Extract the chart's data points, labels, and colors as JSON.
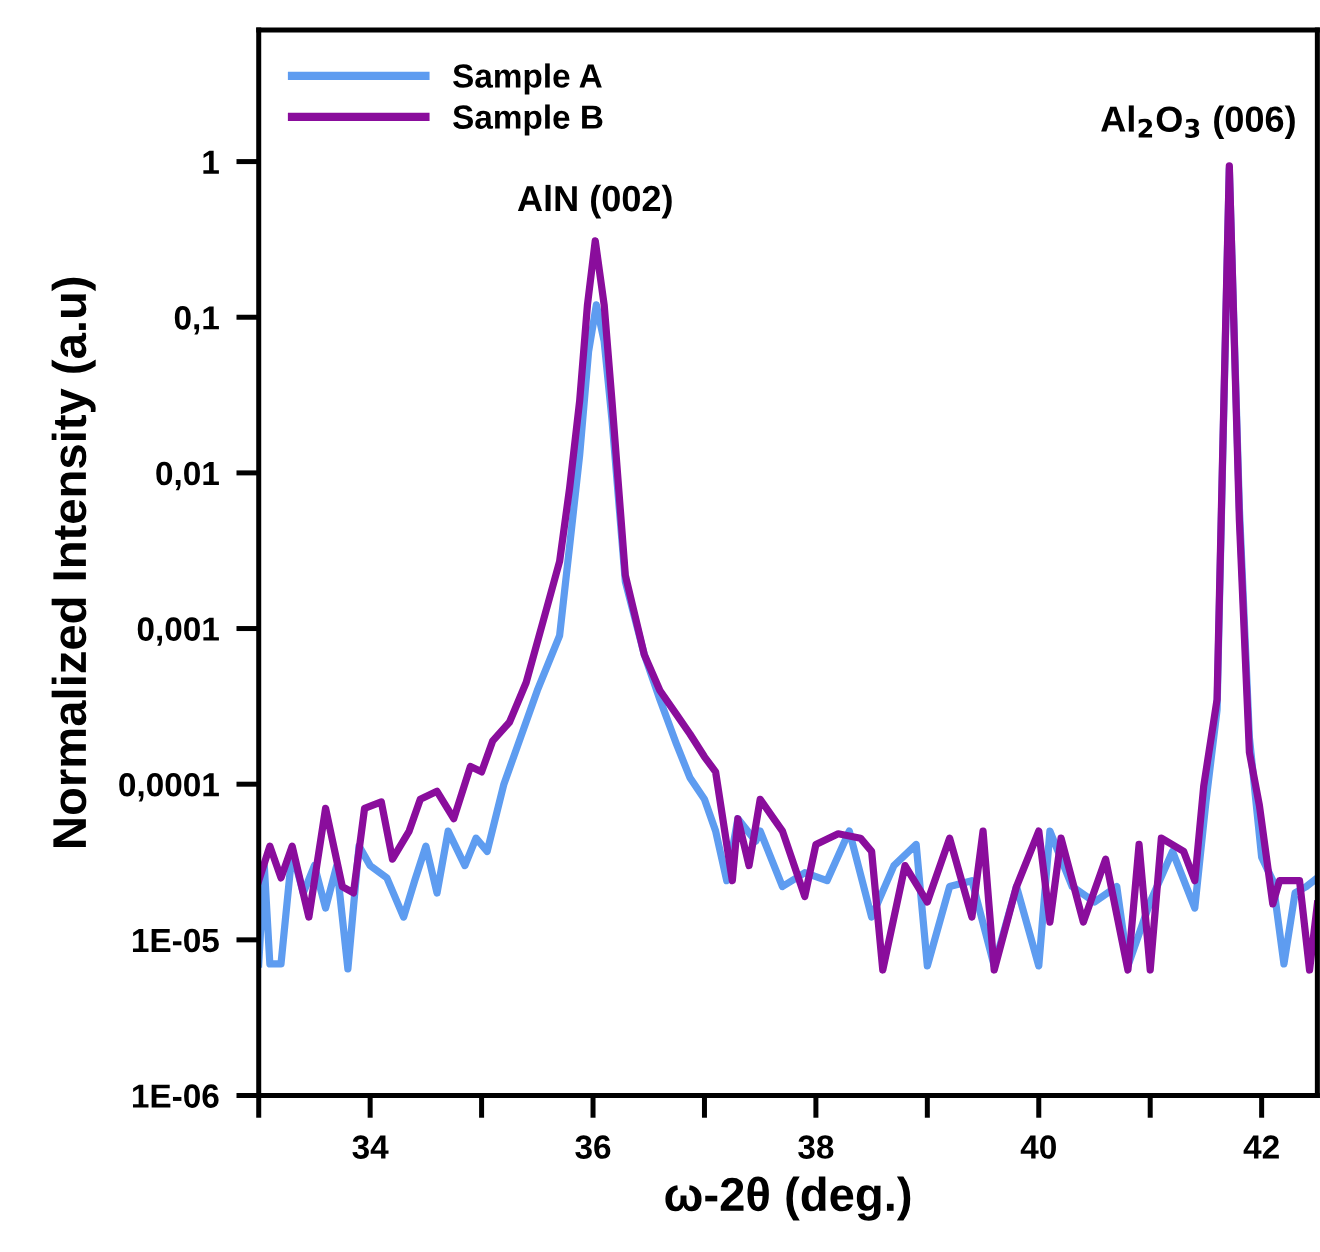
{
  "chart_data": {
    "type": "line",
    "xlabel": "ω-2θ (deg.)",
    "ylabel": "Normalized Intensity (a.u)",
    "log": "y",
    "grid": false,
    "legend": "top left",
    "line_style": "solid",
    "marker": "none",
    "xlim": [
      33,
      42.5
    ],
    "ylim": [
      1e-06,
      7
    ],
    "xticks": [
      {
        "value": 33,
        "label": null
      },
      34,
      {
        "value": 35,
        "label": null
      },
      36,
      {
        "value": 37,
        "label": null
      },
      38,
      {
        "value": 39,
        "label": null
      },
      40,
      {
        "value": 41,
        "label": null
      },
      42
    ],
    "yticks": [
      {
        "value": 1e-06,
        "label": "1E-06"
      },
      {
        "value": 1e-05,
        "label": "1E-05"
      },
      {
        "value": 0.0001,
        "label": "0,0001"
      },
      {
        "value": 0.001,
        "label": "0,001"
      },
      {
        "value": 0.01,
        "label": "0,01"
      },
      {
        "value": 0.1,
        "label": "0,1"
      },
      1
    ],
    "annotations": [
      {
        "text": "AlN (002)",
        "x": 36.02,
        "y": 0.31
      },
      {
        "text": "Al$_{2}$O$_{3}$ (006)",
        "x": 41.71,
        "y": 1
      }
    ],
    "series": [
      {
        "name": "Sample A",
        "color": "#5e9cf0",
        "x": [
          33.0,
          33.05,
          33.1,
          33.2,
          33.3,
          33.4,
          33.5,
          33.6,
          33.7,
          33.8,
          33.9,
          34.0,
          34.15,
          34.3,
          34.4,
          34.5,
          34.6,
          34.7,
          34.85,
          34.95,
          35.05,
          35.2,
          35.35,
          35.5,
          35.7,
          35.79,
          35.88,
          35.96,
          36.03,
          36.1,
          36.17,
          36.29,
          36.46,
          36.6,
          36.75,
          36.87,
          37.0,
          37.1,
          37.2,
          37.3,
          37.46,
          37.5,
          37.7,
          37.9,
          38.1,
          38.3,
          38.5,
          38.7,
          38.9,
          39.0,
          39.2,
          39.4,
          39.6,
          39.8,
          40.0,
          40.1,
          40.3,
          40.5,
          40.7,
          40.8,
          41.0,
          41.2,
          41.4,
          41.5,
          41.6,
          41.65,
          41.71,
          41.8,
          41.89,
          42.0,
          42.1,
          42.2,
          42.3,
          42.4,
          42.5
        ],
        "values": [
          7e-06,
          3e-05,
          7e-06,
          7e-06,
          3.7e-05,
          2e-05,
          3e-05,
          1.6e-05,
          3e-05,
          6.5e-06,
          4e-05,
          3e-05,
          2.5e-05,
          1.4e-05,
          2.4e-05,
          4e-05,
          2e-05,
          5e-05,
          3e-05,
          4.5e-05,
          3.7e-05,
          0.0001,
          0.0002,
          0.0004,
          0.0009,
          0.0034,
          0.013,
          0.06,
          0.12,
          0.07,
          0.022,
          0.002,
          0.00068,
          0.00035,
          0.00018,
          0.00011,
          8e-05,
          5e-05,
          2.4e-05,
          6e-05,
          4.3e-05,
          5e-05,
          2.2e-05,
          2.7e-05,
          2.4e-05,
          5e-05,
          1.4e-05,
          3e-05,
          4.1e-05,
          6.8e-06,
          2.2e-05,
          2.4e-05,
          6.8e-06,
          2.2e-05,
          6.8e-06,
          5e-05,
          2.2e-05,
          1.75e-05,
          2.2e-05,
          6.8e-06,
          1.75e-05,
          3.7e-05,
          1.6e-05,
          7.7e-05,
          0.0003,
          0.012,
          0.9,
          0.006,
          0.0002,
          3.4e-05,
          2.4e-05,
          7e-06,
          2e-05,
          2.2e-05,
          2.5e-05
        ]
      },
      {
        "name": "Sample B",
        "color": "#8a0d9c",
        "x": [
          33.0,
          33.1,
          33.2,
          33.3,
          33.45,
          33.6,
          33.75,
          33.85,
          33.95,
          34.1,
          34.2,
          34.35,
          34.45,
          34.6,
          34.75,
          34.9,
          35.0,
          35.1,
          35.25,
          35.4,
          35.55,
          35.7,
          35.79,
          35.88,
          35.95,
          36.02,
          36.1,
          36.17,
          36.29,
          36.46,
          36.6,
          36.75,
          36.87,
          37.0,
          37.1,
          37.25,
          37.3,
          37.4,
          37.5,
          37.7,
          37.9,
          38.0,
          38.2,
          38.4,
          38.5,
          38.6,
          38.8,
          39.0,
          39.2,
          39.4,
          39.5,
          39.6,
          39.8,
          40.0,
          40.1,
          40.2,
          40.4,
          40.6,
          40.8,
          40.9,
          41.0,
          41.1,
          41.3,
          41.4,
          41.48,
          41.6,
          41.65,
          41.71,
          41.8,
          41.89,
          41.98,
          42.1,
          42.16,
          42.34,
          42.43,
          42.5
        ],
        "values": [
          2.4e-05,
          4e-05,
          2.5e-05,
          4e-05,
          1.4e-05,
          7e-05,
          2.2e-05,
          2e-05,
          7e-05,
          7.7e-05,
          3.3e-05,
          5e-05,
          8e-05,
          9e-05,
          6e-05,
          0.00013,
          0.00012,
          0.00019,
          0.00025,
          0.00045,
          0.0011,
          0.0027,
          0.008,
          0.029,
          0.12,
          0.31,
          0.12,
          0.029,
          0.0022,
          0.00068,
          0.0004,
          0.00028,
          0.00021,
          0.00015,
          0.00012,
          2.4e-05,
          6e-05,
          3e-05,
          8e-05,
          5e-05,
          1.9e-05,
          4.1e-05,
          4.8e-05,
          4.5e-05,
          3.7e-05,
          6.4e-06,
          3e-05,
          1.75e-05,
          4.5e-05,
          1.4e-05,
          5e-05,
          6.4e-06,
          2.2e-05,
          5e-05,
          1.3e-05,
          4.5e-05,
          1.3e-05,
          3.3e-05,
          6.4e-06,
          4.1e-05,
          6.4e-06,
          4.5e-05,
          3.7e-05,
          2.4e-05,
          9.7e-05,
          0.00035,
          0.013,
          0.94,
          0.005,
          0.00016,
          7.3e-05,
          1.7e-05,
          2.4e-05,
          2.4e-05,
          6.4e-06,
          1.7e-05
        ]
      }
    ]
  }
}
